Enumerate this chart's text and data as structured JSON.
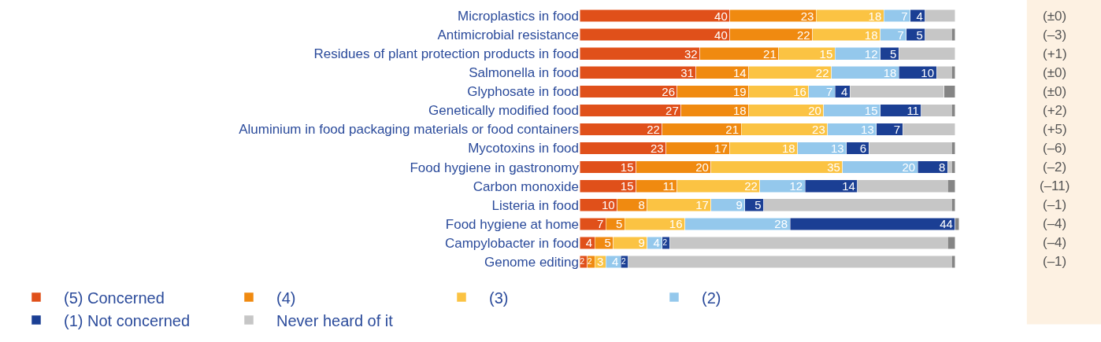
{
  "chart_data": {
    "type": "bar",
    "orientation": "horizontal",
    "stacked": true,
    "legend": "bottom",
    "categories": [
      "Microplastics in food",
      "Antimicrobial resistance",
      "Residues of plant protection products in food",
      "Salmonella in food",
      "Glyphosate in food",
      "Genetically modified food",
      "Aluminium in food packaging materials or food containers",
      "Mycotoxins in food",
      "Food hygiene in gastronomy",
      "Carbon monoxide",
      "Listeria in food",
      "Food hygiene at home",
      "Campylobacter in food",
      "Genome editing"
    ],
    "series": [
      {
        "name": "(5) Concerned",
        "color": "#e0501a",
        "values": [
          40,
          40,
          32,
          31,
          26,
          27,
          22,
          23,
          15,
          15,
          10,
          7,
          4,
          2
        ],
        "value_labels": [
          "40",
          "40",
          "32",
          "31",
          "26",
          "27",
          "22",
          "23",
          "15",
          "15",
          "10",
          "7",
          "4",
          "2"
        ]
      },
      {
        "name": "(4)",
        "color": "#f08a10",
        "values": [
          23,
          22,
          21,
          14,
          19,
          18,
          21,
          17,
          20,
          11,
          8,
          5,
          5,
          2
        ],
        "value_labels": [
          "23",
          "22",
          "21",
          "14",
          "19",
          "18",
          "21",
          "17",
          "20",
          "11",
          "8",
          "5",
          "5",
          "2"
        ]
      },
      {
        "name": "(3)",
        "color": "#fbc343",
        "values": [
          18,
          18,
          15,
          22,
          16,
          20,
          23,
          18,
          35,
          22,
          17,
          16,
          9,
          3
        ],
        "value_labels": [
          "18",
          "18",
          "15",
          "22",
          "16",
          "20",
          "23",
          "18",
          "35",
          "22",
          "17",
          "16",
          "9",
          "3"
        ]
      },
      {
        "name": "(2)",
        "color": "#94c8ec",
        "values": [
          7,
          7,
          12,
          18,
          7,
          15,
          13,
          13,
          20,
          12,
          9,
          28,
          4,
          4
        ],
        "value_labels": [
          "7",
          "7",
          "12",
          "18",
          "7",
          "15",
          "13",
          "13",
          "20",
          "12",
          "9",
          "28",
          "4",
          "4"
        ]
      },
      {
        "name": "(1) Not concerned",
        "color": "#1b3f94",
        "values": [
          4,
          5,
          5,
          10,
          4,
          11,
          7,
          6,
          8,
          14,
          5,
          44,
          2,
          2
        ],
        "value_labels": [
          "4",
          "5",
          "5",
          "10",
          "4",
          "11",
          "7",
          "6",
          "8",
          "14",
          "5",
          "44",
          "2",
          "2"
        ]
      },
      {
        "name": "Never heard of it",
        "color": "#c6c6c6",
        "values": [
          8,
          7,
          15,
          4,
          25,
          8,
          14,
          22,
          1,
          24,
          50,
          null,
          74,
          86
        ]
      },
      {
        "color": "#858585",
        "values": [
          null,
          1,
          null,
          1,
          3,
          1,
          null,
          1,
          1,
          2,
          1,
          1,
          2,
          1
        ]
      }
    ],
    "annotations": [
      "(±0)",
      "(–3)",
      "(+1)",
      "(±0)",
      "(±0)",
      "(+2)",
      "(+5)",
      "(–6)",
      "(–2)",
      "(–11)",
      "(–1)",
      "(–4)",
      "(–4)",
      "(–1)"
    ]
  }
}
